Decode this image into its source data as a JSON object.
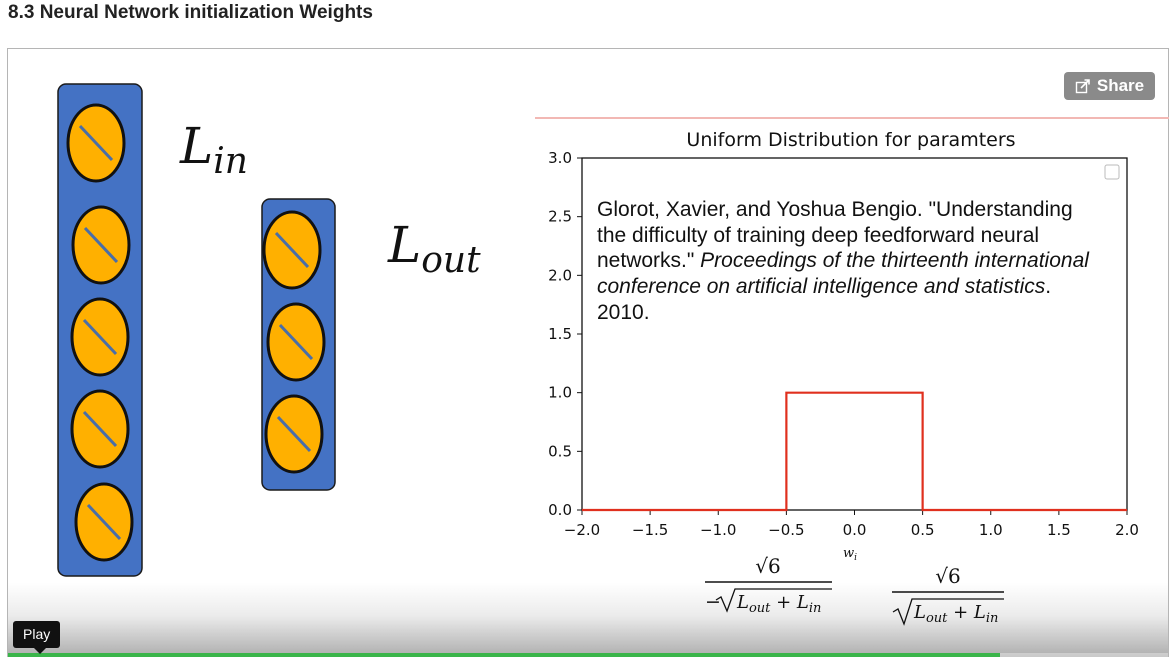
{
  "page": {
    "title": "8.3 Neural Network initialization Weights"
  },
  "video": {
    "share_label": "Share",
    "play_tooltip": "Play",
    "progress": 0.855,
    "progress_color": "#3ab54a"
  },
  "slide": {
    "layer_in_label": {
      "base": "L",
      "sub": "in"
    },
    "layer_out_label": {
      "base": "L",
      "sub": "out"
    },
    "neuron_fill": "#ffb000",
    "panel_fill": "#4472c4",
    "citation": {
      "line1": "Glorot, Xavier, and Yoshua Bengio. \"Understanding",
      "line2": "the difficulty of training deep feedforward neural",
      "line3_plain": "networks.\" ",
      "line3_italic": "Proceedings of the thirteenth international",
      "line4_italic": "conference on artificial intelligence and statistics",
      "line4_end": ".",
      "line5": "2010."
    },
    "formula_left": {
      "numerator": "√6",
      "denominator_prefix": "−",
      "denominator": "L_out + L_in"
    },
    "formula_right": {
      "numerator": "√6",
      "denominator": "L_out + L_in"
    }
  },
  "chart_data": {
    "type": "line",
    "title": "Uniform Distribution for paramters",
    "xlabel": "w_i",
    "ylabel": "",
    "xlim": [
      -2.0,
      2.0
    ],
    "ylim": [
      0.0,
      3.0
    ],
    "x_ticks": [
      "−2.0",
      "−1.5",
      "−1.0",
      "−0.5",
      "0.0",
      "0.5",
      "1.0",
      "1.5",
      "2.0"
    ],
    "x_tick_values": [
      -2.0,
      -1.5,
      -1.0,
      -0.5,
      0.0,
      0.5,
      1.0,
      1.5,
      2.0
    ],
    "y_ticks": [
      "0.0",
      "0.5",
      "1.0",
      "1.5",
      "2.0",
      "2.5",
      "3.0"
    ],
    "y_tick_values": [
      0.0,
      0.5,
      1.0,
      1.5,
      2.0,
      2.5,
      3.0
    ],
    "grid": false,
    "series": [
      {
        "color": "#e0301e",
        "x": [
          -2.0,
          -0.5,
          -0.5,
          0.5,
          0.5,
          2.0
        ],
        "y": [
          0.0,
          0.0,
          1.0,
          1.0,
          0.0,
          0.0
        ]
      }
    ]
  }
}
